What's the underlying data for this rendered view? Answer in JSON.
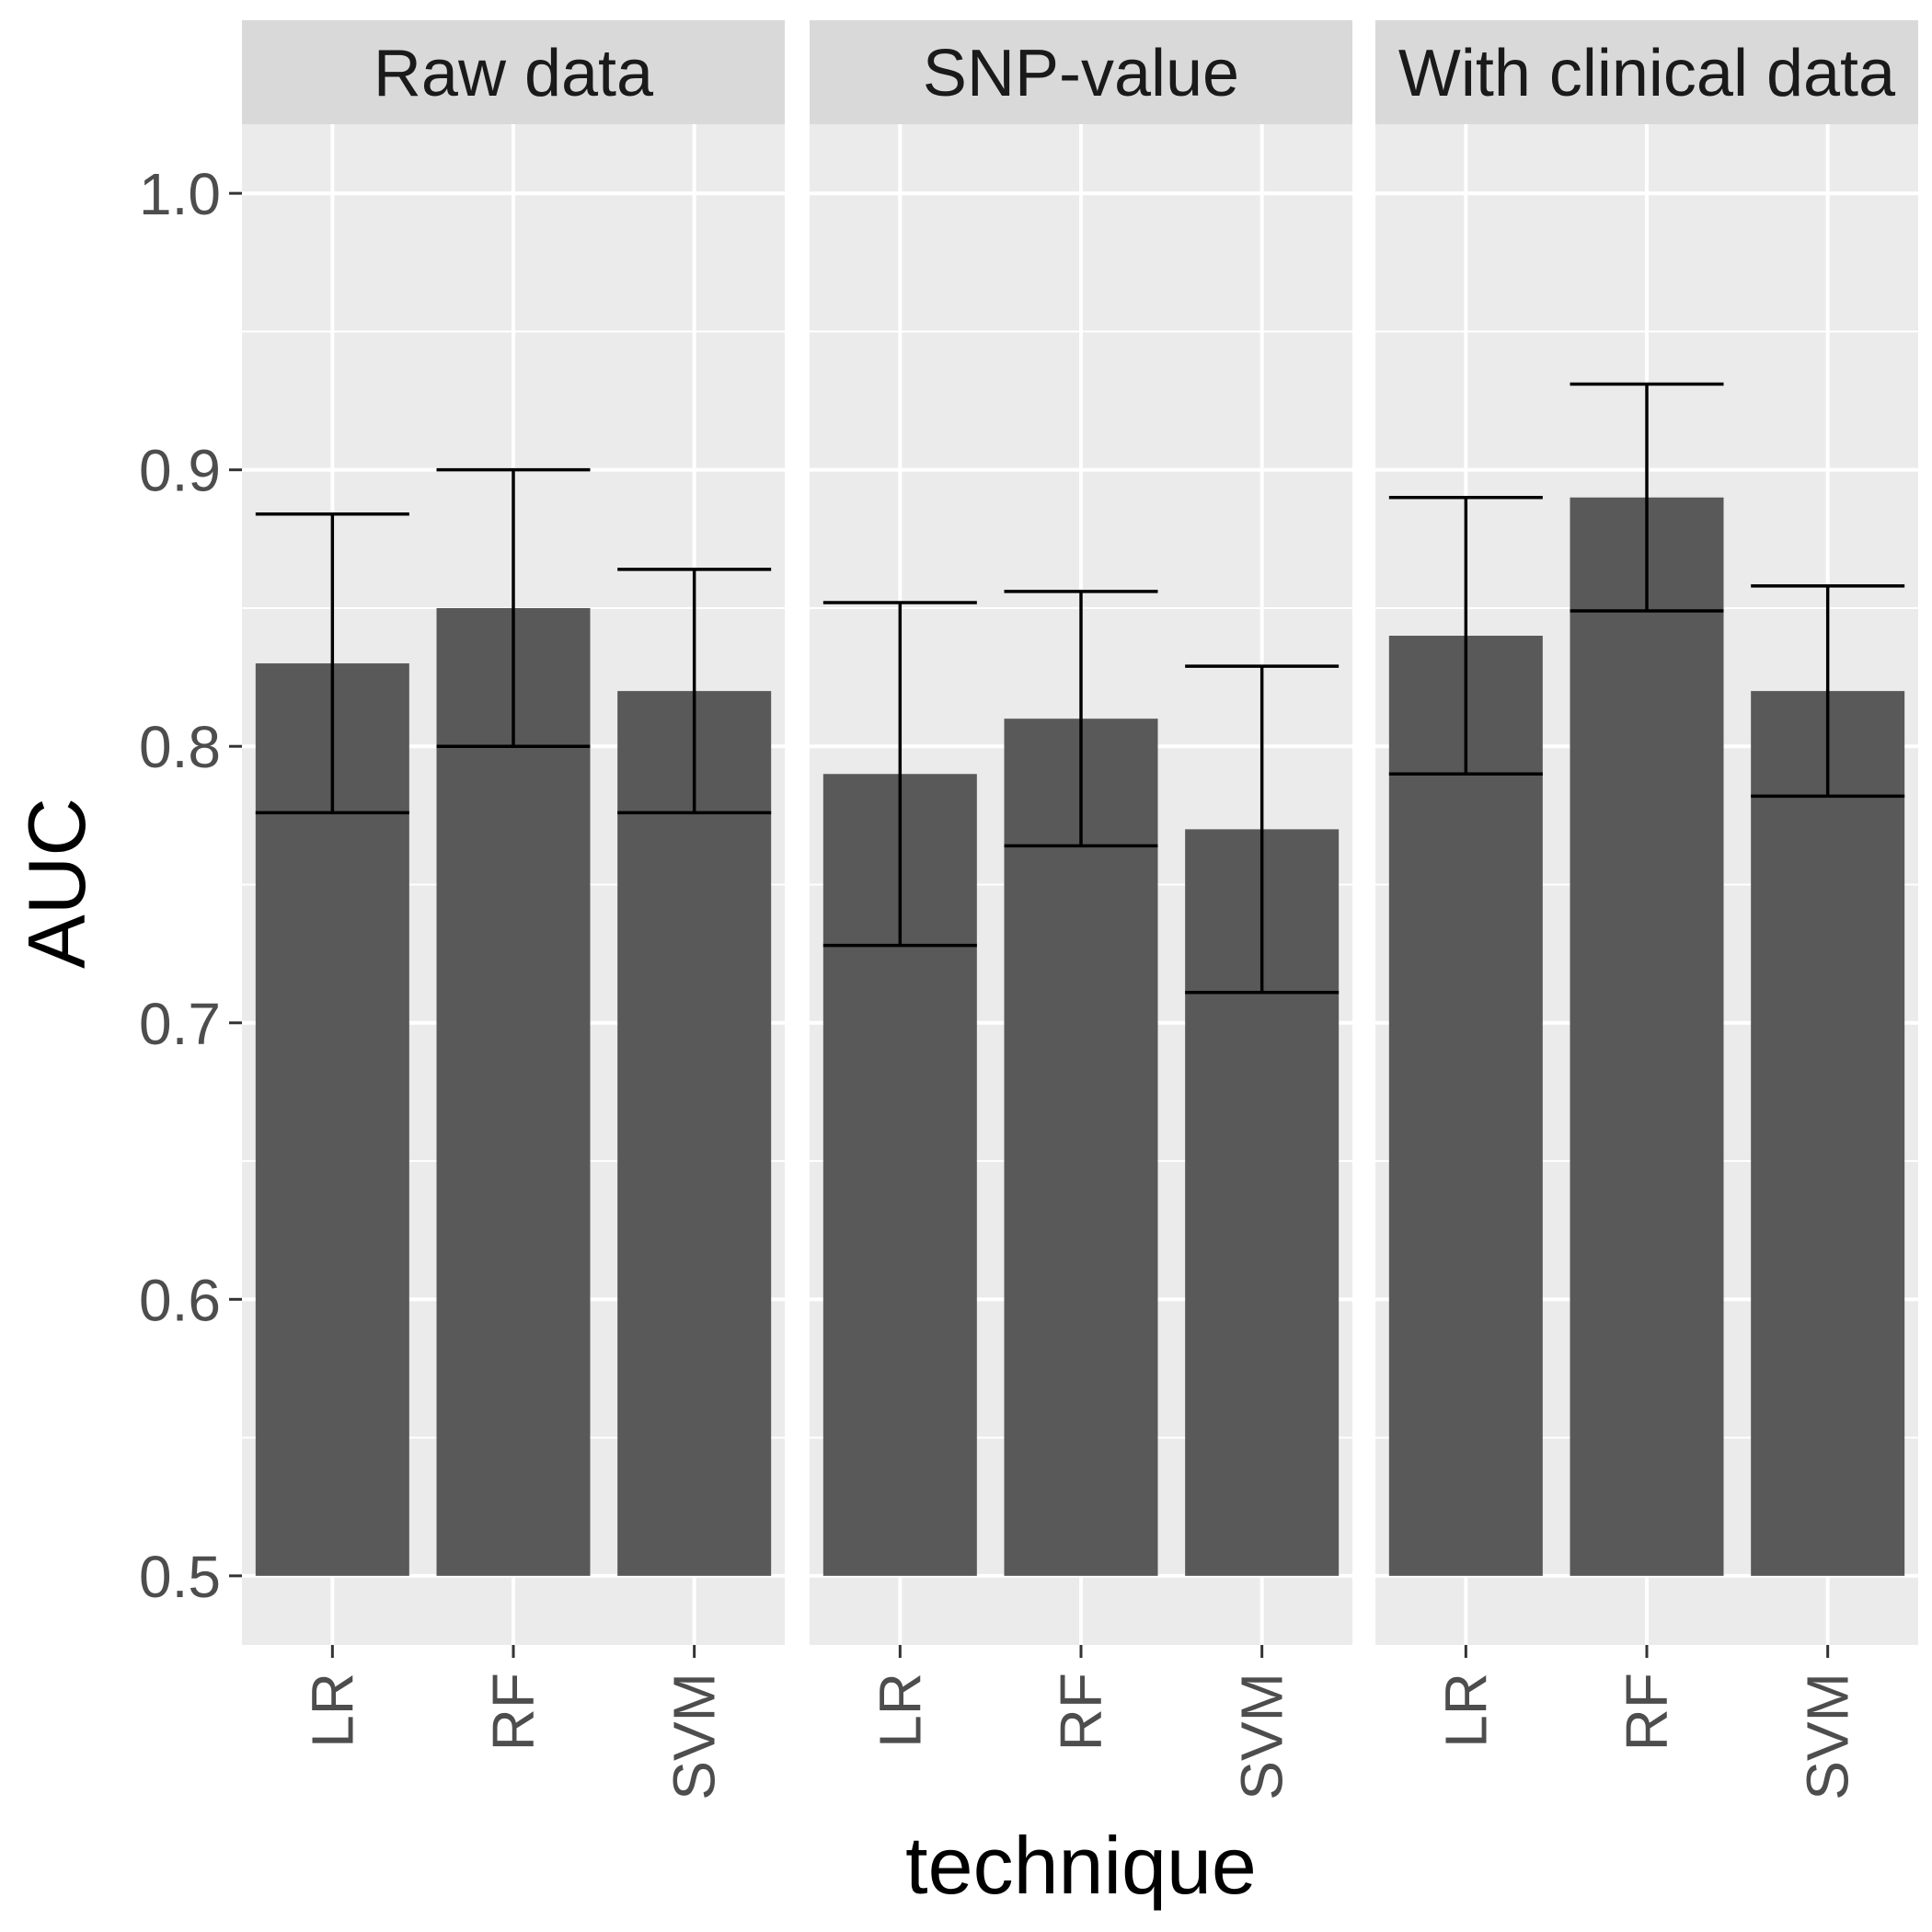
{
  "chart_data": {
    "type": "bar",
    "facets": [
      "Raw data",
      "SNP-value",
      "With clinical data"
    ],
    "categories": [
      "LR",
      "RF",
      "SVM"
    ],
    "series": [
      {
        "facet": "Raw data",
        "values": [
          0.83,
          0.85,
          0.82
        ],
        "error_low": [
          0.776,
          0.8,
          0.776
        ],
        "error_high": [
          0.884,
          0.9,
          0.864
        ]
      },
      {
        "facet": "SNP-value",
        "values": [
          0.79,
          0.81,
          0.77
        ],
        "error_low": [
          0.728,
          0.764,
          0.711
        ],
        "error_high": [
          0.852,
          0.856,
          0.829
        ]
      },
      {
        "facet": "With clinical data",
        "values": [
          0.84,
          0.89,
          0.82
        ],
        "error_low": [
          0.79,
          0.849,
          0.782
        ],
        "error_high": [
          0.89,
          0.931,
          0.858
        ]
      }
    ],
    "bar_base": 0.5,
    "xlabel": "technique",
    "ylabel": "AUC",
    "ylim": [
      0.475,
      1.025
    ],
    "yticks": [
      0.5,
      0.6,
      0.7,
      0.8,
      0.9,
      1.0
    ],
    "ytick_labels": [
      "0.5",
      "0.6",
      "0.7",
      "0.8",
      "0.9",
      "1.0"
    ],
    "grid": true,
    "colors": {
      "bar": "#595959",
      "panel": "#ebebeb",
      "strip": "#d9d9d9",
      "grid": "#ffffff",
      "errorbar": "#000000"
    }
  }
}
